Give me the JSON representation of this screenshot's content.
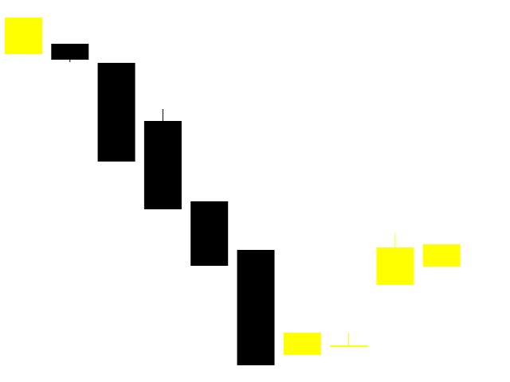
{
  "chart_data": {
    "type": "candlestick",
    "colors": {
      "up": "#ffff00",
      "down": "#000000",
      "background": "#ffffff"
    },
    "ylim": [
      0,
      480
    ],
    "candles": [
      {
        "open": 412,
        "high": 458,
        "low": 412,
        "close": 458
      },
      {
        "open": 425,
        "high": 425,
        "low": 402,
        "close": 405
      },
      {
        "open": 401,
        "high": 401,
        "low": 277,
        "close": 277
      },
      {
        "open": 328,
        "high": 343,
        "low": 217,
        "close": 217
      },
      {
        "open": 227,
        "high": 227,
        "low": 146,
        "close": 146
      },
      {
        "open": 166,
        "high": 166,
        "low": 21,
        "close": 21
      },
      {
        "open": 34,
        "high": 62,
        "low": 34,
        "close": 62
      },
      {
        "open": 44,
        "high": 62,
        "low": 44,
        "close": 46
      },
      {
        "open": 122,
        "high": 187,
        "low": 122,
        "close": 169
      },
      {
        "open": 145,
        "high": 173,
        "low": 145,
        "close": 173
      }
    ]
  }
}
